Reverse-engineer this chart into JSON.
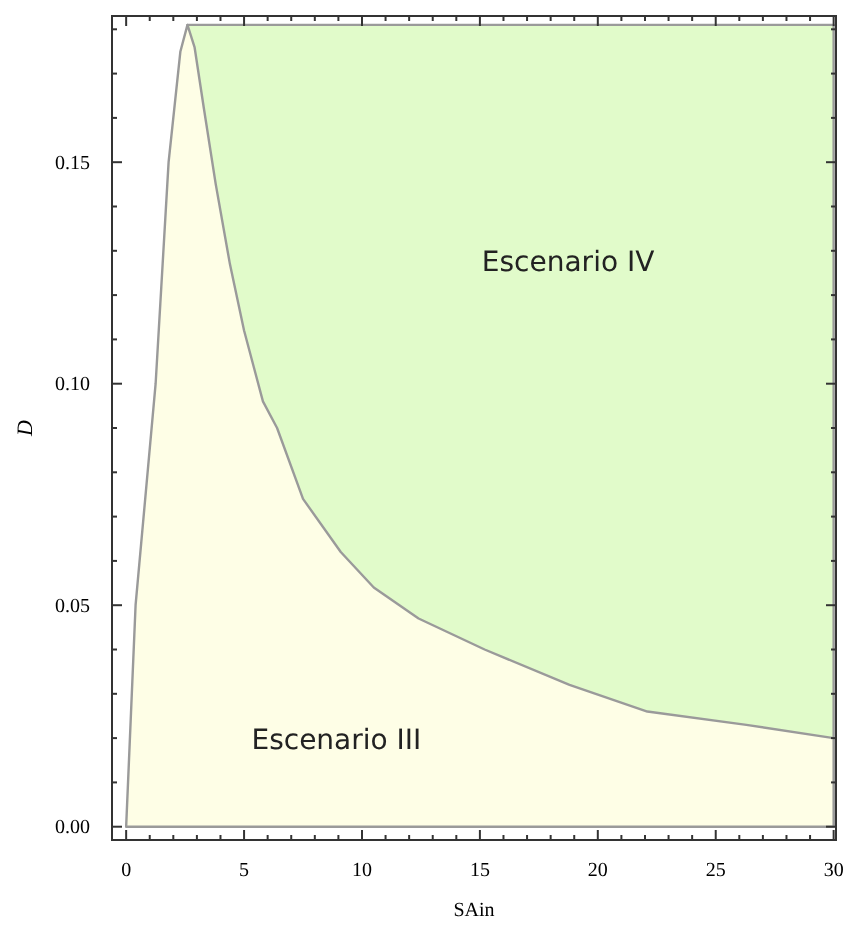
{
  "chart_data": {
    "type": "area",
    "xlabel": "SAin",
    "ylabel": "D",
    "xlim": [
      -0.6,
      30.1
    ],
    "ylim": [
      -0.003,
      0.183
    ],
    "xticks": [
      0,
      {
        "value": 1,
        "label": null
      },
      {
        "value": 2,
        "label": null
      },
      {
        "value": 3,
        "label": null
      },
      {
        "value": 4,
        "label": null
      },
      5,
      {
        "value": 6,
        "label": null
      },
      {
        "value": 7,
        "label": null
      },
      {
        "value": 8,
        "label": null
      },
      {
        "value": 9,
        "label": null
      },
      10,
      {
        "value": 11,
        "label": null
      },
      {
        "value": 12,
        "label": null
      },
      {
        "value": 13,
        "label": null
      },
      {
        "value": 14,
        "label": null
      },
      15,
      {
        "value": 16,
        "label": null
      },
      {
        "value": 17,
        "label": null
      },
      {
        "value": 18,
        "label": null
      },
      {
        "value": 19,
        "label": null
      },
      20,
      {
        "value": 21,
        "label": null
      },
      {
        "value": 22,
        "label": null
      },
      {
        "value": 23,
        "label": null
      },
      {
        "value": 24,
        "label": null
      },
      25,
      {
        "value": 26,
        "label": null
      },
      {
        "value": 27,
        "label": null
      },
      {
        "value": 28,
        "label": null
      },
      {
        "value": 29,
        "label": null
      },
      30
    ],
    "yticks": [
      {
        "value": 0,
        "label": "0.00"
      },
      {
        "value": 0.01,
        "label": null
      },
      {
        "value": 0.02,
        "label": null
      },
      {
        "value": 0.03,
        "label": null
      },
      {
        "value": 0.04,
        "label": null
      },
      {
        "value": 0.05,
        "label": "0.05"
      },
      {
        "value": 0.06,
        "label": null
      },
      {
        "value": 0.07,
        "label": null
      },
      {
        "value": 0.08,
        "label": null
      },
      {
        "value": 0.09,
        "label": null
      },
      {
        "value": 0.1,
        "label": "0.10"
      },
      {
        "value": 0.11,
        "label": null
      },
      {
        "value": 0.12,
        "label": null
      },
      {
        "value": 0.13,
        "label": null
      },
      {
        "value": 0.14,
        "label": null
      },
      {
        "value": 0.15,
        "label": "0.15"
      },
      {
        "value": 0.16,
        "label": null
      },
      {
        "value": 0.17,
        "label": null
      },
      {
        "value": 0.18,
        "label": null
      }
    ],
    "series": [
      {
        "color": "#e1fbca",
        "x": [
          2.6,
          30
        ],
        "values": [
          0.181,
          0.181
        ]
      },
      {
        "color": "#fefee6",
        "x": [
          0,
          0.4,
          1.25,
          1.8,
          2.3,
          2.6,
          2.9,
          3.3,
          3.8,
          4.4,
          5.0,
          5.8,
          6.4,
          7.5,
          9.1,
          10.5,
          12.4,
          15.2,
          18.8,
          22.1,
          26.3,
          30
        ],
        "values": [
          0,
          0.05,
          0.1,
          0.15,
          0.175,
          0.181,
          0.176,
          0.162,
          0.145,
          0.127,
          0.112,
          0.096,
          0.09,
          0.074,
          0.062,
          0.054,
          0.047,
          0.04,
          0.032,
          0.026,
          0.023,
          0.02
        ]
      }
    ],
    "annotations": [
      "Escenario IV",
      "Escenario III"
    ]
  }
}
